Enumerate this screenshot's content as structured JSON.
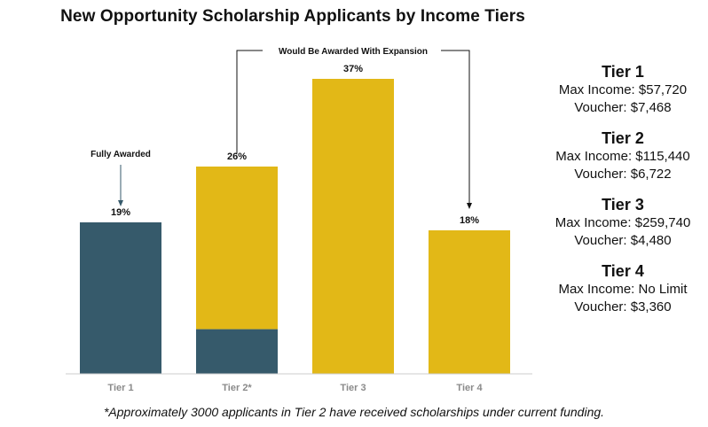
{
  "chart_data": {
    "type": "bar",
    "title": "New Opportunity Scholarship Applicants by Income Tiers",
    "categories": [
      "Tier 1",
      "Tier 2*",
      "Tier 3",
      "Tier 4"
    ],
    "series": [
      {
        "values": [
          19,
          26,
          37,
          18
        ],
        "labels": [
          "19%",
          "26%",
          "37%",
          "18%"
        ]
      }
    ],
    "awarded_portion": [
      19,
      5.6,
      0,
      0
    ],
    "ylim": [
      0,
      40
    ],
    "grid": false,
    "annotations": {
      "fully_awarded": "Fully Awarded",
      "expansion": "Would Be Awarded With Expansion"
    },
    "colors": {
      "awarded": "#365a6b",
      "not_awarded": "#e2b817",
      "axis": "#cccccc"
    }
  },
  "tiers": [
    {
      "name": "Tier 1",
      "max_income": "Max Income: $57,720",
      "voucher": "Voucher: $7,468"
    },
    {
      "name": "Tier 2",
      "max_income": "Max Income: $115,440",
      "voucher": "Voucher: $6,722"
    },
    {
      "name": "Tier 3",
      "max_income": "Max Income: $259,740",
      "voucher": "Voucher: $4,480"
    },
    {
      "name": "Tier 4",
      "max_income": "Max Income: No Limit",
      "voucher": "Voucher: $3,360"
    }
  ],
  "footnote": "*Approximately 3000 applicants in Tier 2 have received scholarships under current funding."
}
